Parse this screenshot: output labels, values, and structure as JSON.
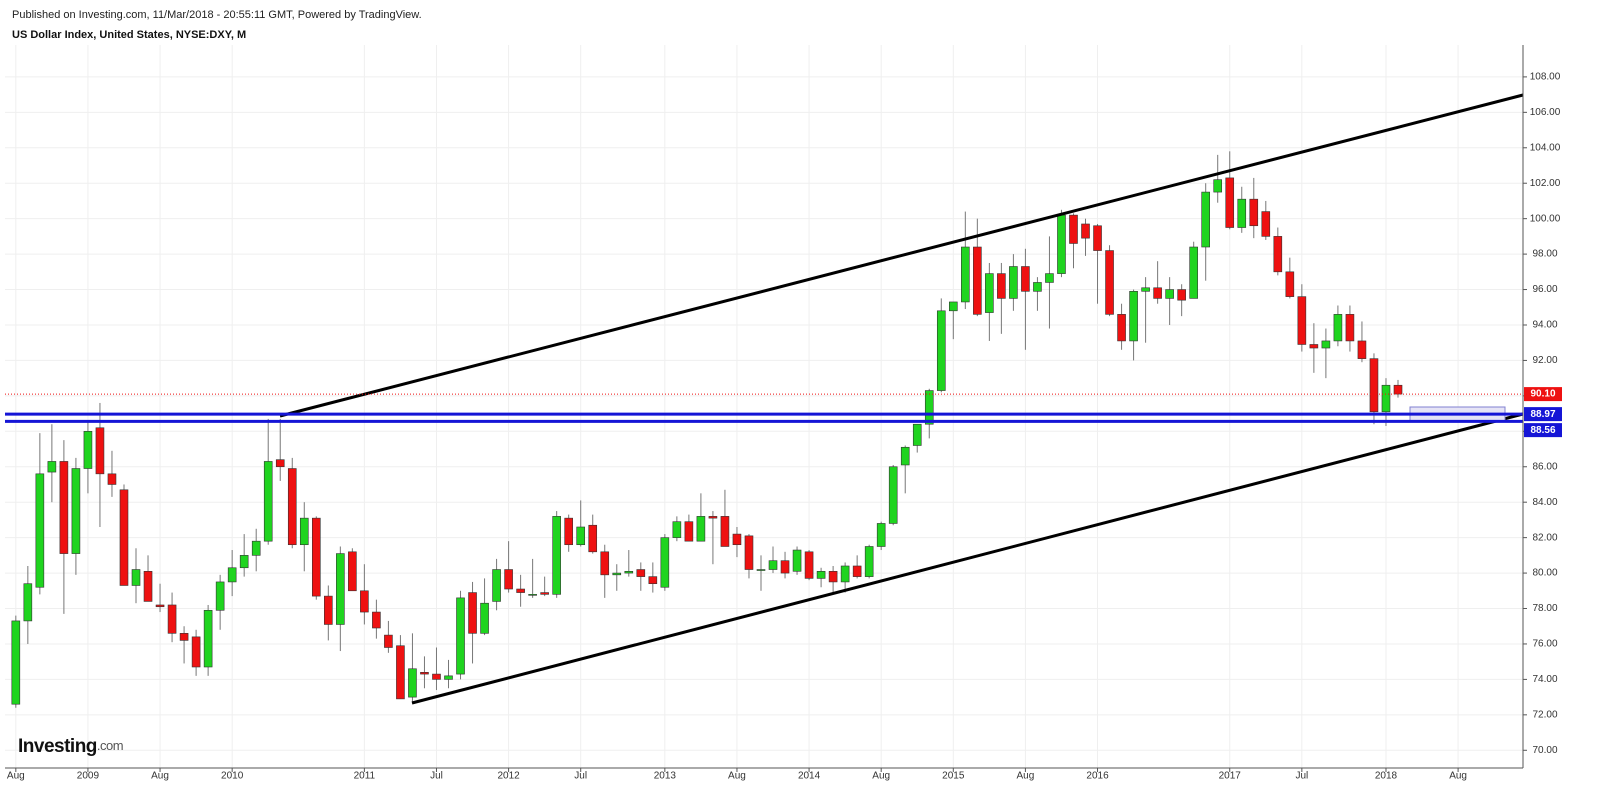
{
  "header": {
    "published": "Published on Investing.com, 11/Mar/2018 - 20:55:11 GMT, Powered by TradingView.",
    "logo": {
      "name": "Investing",
      "suffix": ".com"
    }
  },
  "chart_data": {
    "type": "candlestick",
    "title": "US Dollar Index, United States, NYSE:DXY, M",
    "up_color": "#1fd41f",
    "down_color": "#ee1111",
    "grid": true,
    "xlim": [
      -0.9,
      125.4
    ],
    "xticks": [
      {
        "value": 0,
        "label": "Aug"
      },
      {
        "value": 6,
        "label": "2009"
      },
      {
        "value": 12,
        "label": "Aug"
      },
      {
        "value": 18,
        "label": "2010"
      },
      {
        "value": 29,
        "label": "2011"
      },
      {
        "value": 35,
        "label": "Jul"
      },
      {
        "value": 41,
        "label": "2012"
      },
      {
        "value": 47,
        "label": "Jul"
      },
      {
        "value": 54,
        "label": "2013"
      },
      {
        "value": 60,
        "label": "Aug"
      },
      {
        "value": 66,
        "label": "2014"
      },
      {
        "value": 72,
        "label": "Aug"
      },
      {
        "value": 78,
        "label": "2015"
      },
      {
        "value": 84,
        "label": "Aug"
      },
      {
        "value": 90,
        "label": "2016"
      },
      {
        "value": 101,
        "label": "2017"
      },
      {
        "value": 107,
        "label": "Jul"
      },
      {
        "value": 114,
        "label": "2018"
      },
      {
        "value": 120,
        "label": "Aug"
      }
    ],
    "ylim": [
      69,
      109.8
    ],
    "yticks": [
      {
        "value": 70,
        "label": "70.00"
      },
      {
        "value": 72,
        "label": "72.00"
      },
      {
        "value": 74,
        "label": "74.00"
      },
      {
        "value": 76,
        "label": "76.00"
      },
      {
        "value": 78,
        "label": "78.00"
      },
      {
        "value": 80,
        "label": "80.00"
      },
      {
        "value": 82,
        "label": "82.00"
      },
      {
        "value": 84,
        "label": "84.00"
      },
      {
        "value": 86,
        "label": "86.00"
      },
      {
        "value": 88,
        "label": "88.00"
      },
      {
        "value": 90,
        "label": "90.00"
      },
      {
        "value": 92,
        "label": "92.00"
      },
      {
        "value": 94,
        "label": "94.00"
      },
      {
        "value": 96,
        "label": "96.00"
      },
      {
        "value": 98,
        "label": "98.00"
      },
      {
        "value": 100,
        "label": "100.00"
      },
      {
        "value": 102,
        "label": "102.00"
      },
      {
        "value": 104,
        "label": "104.00"
      },
      {
        "value": 106,
        "label": "106.00"
      },
      {
        "value": 108,
        "label": "108.00"
      }
    ],
    "open": [
      72.6,
      77.3,
      79.2,
      85.7,
      86.3,
      81.1,
      85.9,
      88.2,
      85.6,
      84.7,
      79.3,
      80.1,
      78.2,
      78.2,
      76.6,
      76.4,
      74.7,
      77.9,
      79.5,
      80.3,
      81.0,
      81.8,
      86.4,
      85.9,
      81.6,
      83.1,
      78.7,
      77.1,
      81.2,
      79.0,
      77.8,
      76.5,
      75.9,
      73.0,
      74.4,
      74.3,
      74.0,
      74.3,
      78.9,
      76.6,
      78.4,
      80.2,
      79.1,
      78.8,
      78.9,
      78.8,
      83.1,
      81.6,
      82.7,
      81.2,
      79.9,
      80.0,
      80.2,
      79.8,
      79.2,
      82.0,
      82.9,
      81.8,
      83.2,
      83.2,
      82.2,
      82.1,
      80.2,
      80.2,
      80.7,
      80.1,
      81.2,
      79.7,
      80.1,
      79.5,
      80.4,
      79.8,
      81.5,
      82.8,
      86.1,
      87.2,
      88.4,
      90.3,
      94.8,
      95.3,
      98.4,
      94.7,
      96.9,
      95.5,
      97.3,
      95.9,
      96.4,
      96.9,
      100.2,
      99.7,
      99.6,
      98.2,
      94.6,
      93.1,
      95.9,
      96.1,
      95.5,
      96.0,
      95.5,
      98.4,
      101.5,
      102.3,
      99.5,
      101.1,
      100.4,
      99.0,
      97.0,
      95.6,
      92.9,
      92.7,
      93.1,
      94.6,
      93.1,
      92.1,
      89.1,
      90.6
    ],
    "high": [
      77.6,
      80.4,
      87.9,
      88.4,
      87.5,
      86.5,
      88.5,
      89.6,
      86.9,
      85.0,
      81.4,
      81.0,
      79.4,
      78.9,
      77.0,
      76.8,
      78.2,
      79.9,
      81.3,
      82.2,
      82.5,
      88.7,
      88.7,
      86.5,
      84.0,
      83.2,
      79.3,
      81.5,
      81.4,
      80.5,
      78.5,
      77.3,
      76.5,
      76.6,
      75.3,
      75.8,
      75.1,
      79.0,
      79.5,
      79.7,
      80.8,
      81.8,
      79.9,
      80.8,
      79.8,
      83.5,
      83.3,
      84.1,
      83.3,
      81.6,
      80.5,
      81.3,
      80.6,
      80.6,
      82.2,
      83.2,
      83.3,
      84.5,
      83.5,
      84.7,
      82.6,
      82.2,
      81.0,
      81.5,
      81.2,
      81.5,
      81.3,
      80.3,
      80.4,
      80.6,
      81.0,
      81.6,
      82.9,
      86.1,
      87.2,
      88.4,
      90.4,
      95.5,
      95.3,
      100.4,
      100.0,
      97.5,
      97.5,
      98.0,
      98.3,
      96.7,
      99.0,
      100.5,
      100.3,
      100.0,
      99.7,
      98.5,
      95.2,
      96.0,
      96.7,
      97.6,
      96.7,
      96.3,
      98.7,
      102.0,
      103.6,
      103.8,
      101.8,
      102.3,
      101.0,
      99.5,
      97.8,
      96.3,
      94.1,
      93.8,
      95.1,
      95.1,
      94.2,
      92.4,
      91.0,
      90.9
    ],
    "low": [
      72.4,
      76.0,
      78.8,
      84.0,
      77.7,
      79.9,
      84.5,
      82.6,
      84.3,
      79.3,
      78.3,
      78.4,
      77.8,
      76.1,
      74.9,
      74.2,
      74.2,
      76.8,
      78.7,
      79.8,
      80.1,
      81.6,
      85.2,
      81.4,
      80.1,
      78.5,
      76.2,
      75.6,
      79.0,
      77.1,
      76.3,
      75.5,
      72.9,
      72.7,
      73.5,
      73.4,
      73.5,
      74.0,
      74.9,
      76.5,
      77.9,
      78.9,
      78.1,
      78.6,
      78.7,
      78.6,
      81.2,
      81.5,
      81.1,
      78.6,
      79.0,
      79.8,
      79.0,
      78.9,
      79.0,
      81.8,
      81.8,
      81.8,
      80.5,
      81.5,
      80.9,
      79.7,
      79.0,
      80.0,
      79.7,
      79.9,
      79.6,
      79.2,
      78.9,
      78.9,
      79.7,
      79.7,
      81.3,
      82.7,
      84.5,
      86.8,
      87.6,
      90.2,
      93.2,
      94.9,
      94.5,
      93.1,
      93.5,
      94.8,
      92.6,
      94.8,
      93.8,
      96.7,
      97.2,
      97.9,
      95.2,
      94.5,
      92.6,
      92.0,
      93.0,
      95.2,
      94.0,
      94.5,
      95.5,
      96.5,
      100.9,
      99.4,
      99.2,
      98.9,
      98.8,
      96.8,
      95.5,
      92.5,
      91.3,
      91.0,
      92.8,
      92.5,
      91.9,
      88.4,
      88.3,
      89.9
    ],
    "close": [
      77.3,
      79.4,
      85.6,
      86.3,
      81.1,
      85.9,
      88.0,
      85.6,
      85.0,
      79.3,
      80.2,
      78.4,
      78.1,
      76.6,
      76.2,
      74.7,
      77.9,
      79.5,
      80.3,
      81.0,
      81.8,
      86.3,
      86.0,
      81.6,
      83.1,
      78.7,
      77.1,
      81.1,
      79.0,
      77.8,
      76.9,
      75.8,
      72.9,
      74.6,
      74.3,
      74.0,
      74.2,
      78.6,
      76.6,
      78.3,
      80.2,
      79.1,
      78.9,
      78.8,
      78.8,
      83.2,
      81.6,
      82.6,
      81.2,
      79.9,
      80.0,
      80.1,
      79.8,
      79.4,
      82.0,
      82.9,
      81.8,
      83.2,
      83.1,
      81.5,
      81.6,
      80.2,
      80.2,
      80.7,
      80.0,
      81.3,
      79.7,
      80.1,
      79.5,
      80.4,
      79.8,
      81.5,
      82.8,
      86.0,
      87.1,
      88.4,
      90.3,
      94.8,
      95.3,
      98.4,
      94.6,
      96.9,
      95.5,
      97.3,
      95.9,
      96.4,
      96.9,
      100.2,
      98.6,
      98.9,
      98.2,
      94.6,
      93.1,
      95.9,
      96.1,
      95.5,
      96.0,
      95.4,
      98.4,
      101.5,
      102.2,
      99.5,
      101.1,
      99.6,
      99.0,
      97.0,
      95.6,
      92.9,
      92.7,
      93.1,
      94.6,
      93.1,
      92.1,
      89.1,
      90.6,
      90.1
    ],
    "price_labels": [
      {
        "value": 90.1,
        "label": "90.10",
        "color": "#ee1111",
        "line_style": "dotted"
      },
      {
        "value": 88.97,
        "label": "88.97",
        "color": "#1515d6",
        "line_style": "solid"
      },
      {
        "value": 88.56,
        "label": "88.56",
        "color": "#1515d6",
        "line_style": "solid"
      }
    ]
  }
}
